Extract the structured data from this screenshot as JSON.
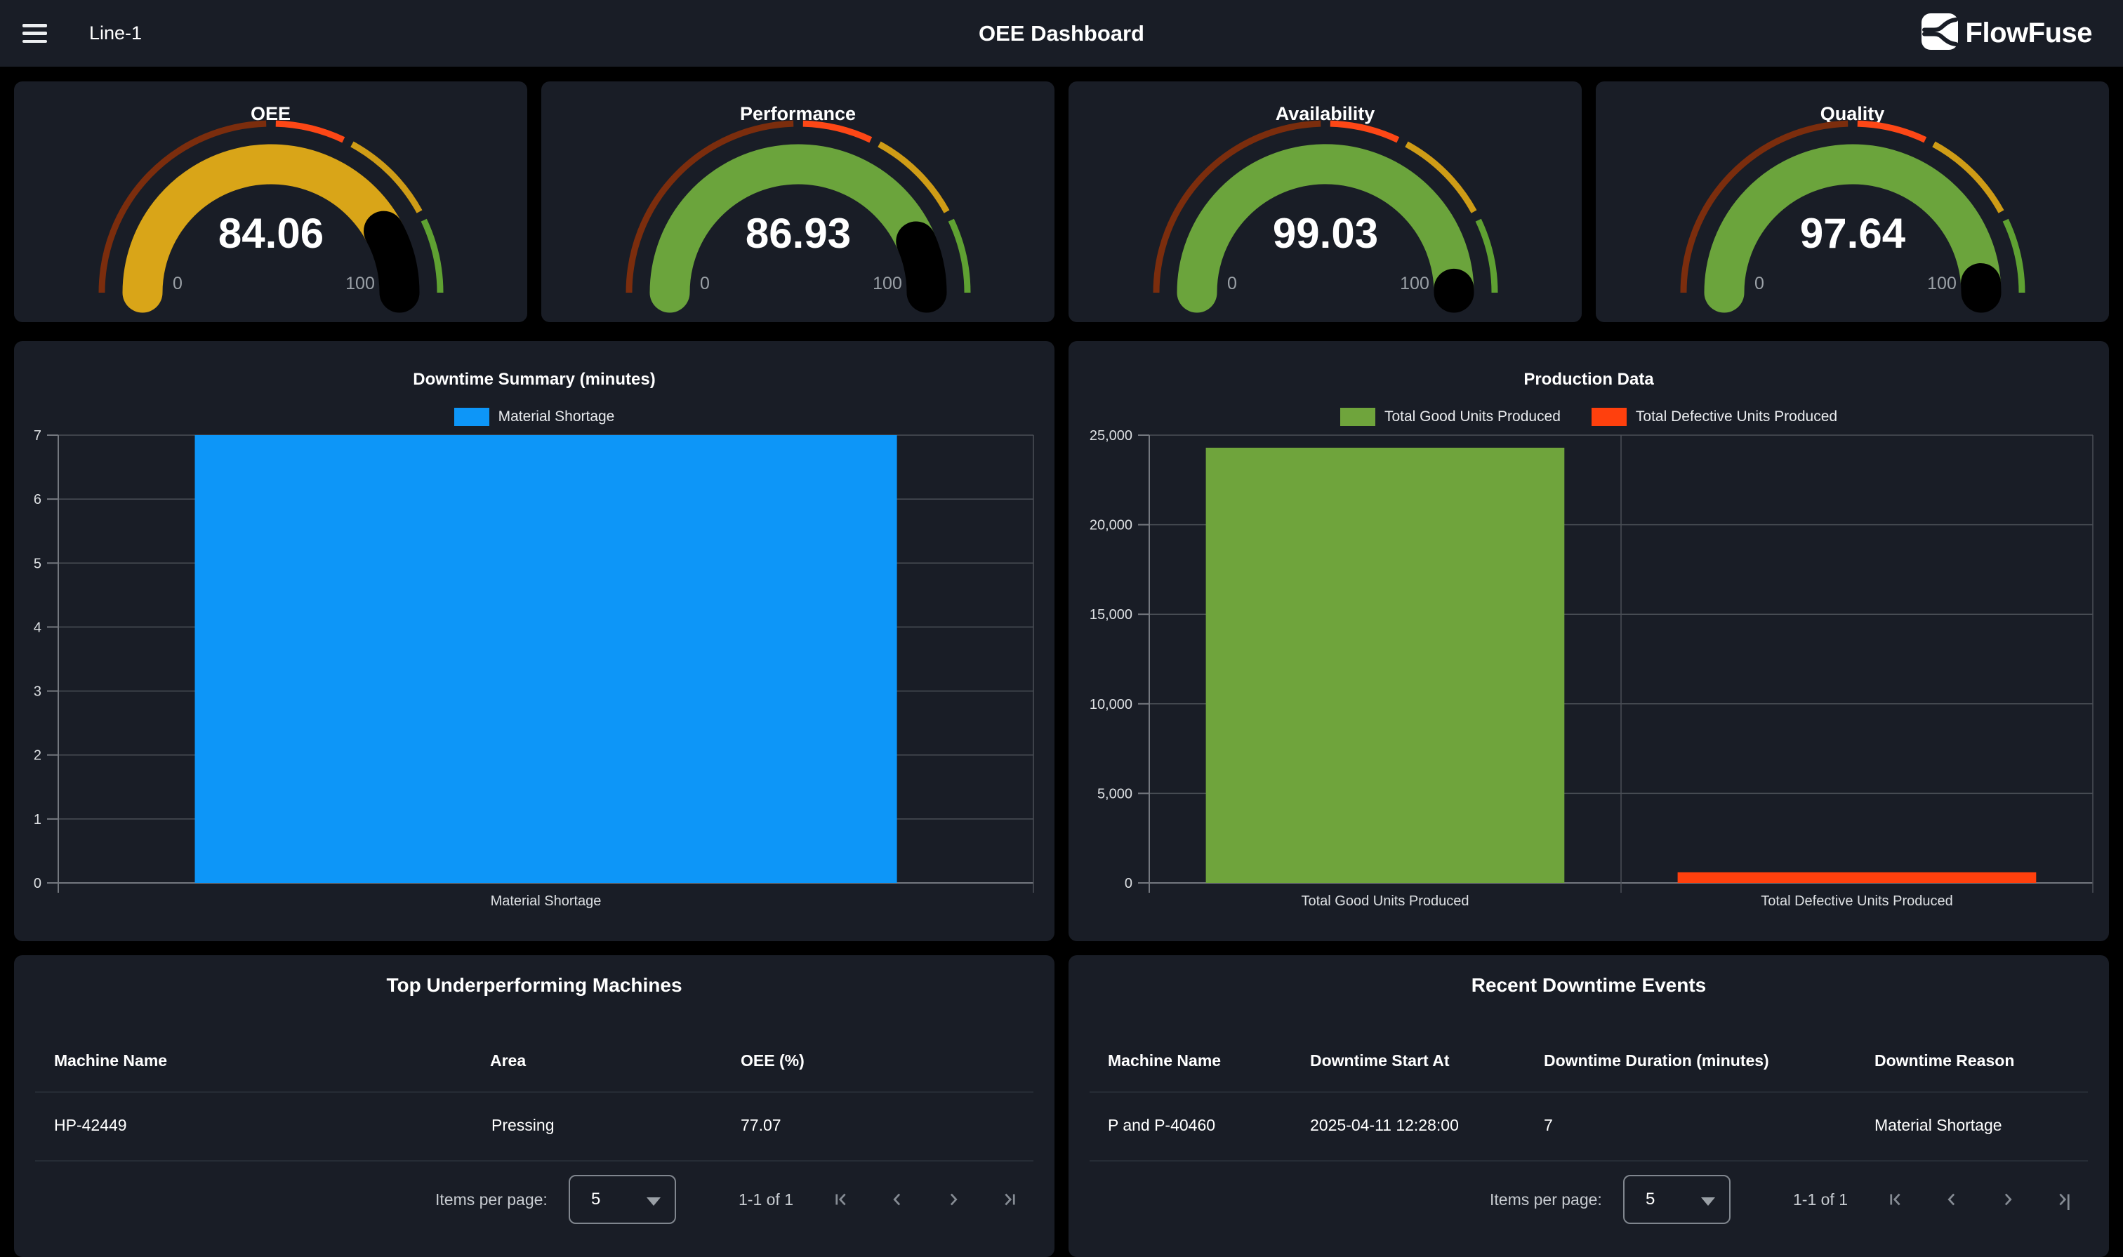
{
  "topbar": {
    "context": "Line-1",
    "title": "OEE Dashboard",
    "brand": "FlowFuse"
  },
  "gauge_zones": [
    {
      "to": 50,
      "color": "#7b2d0d",
      "value_color": "#b03a10"
    },
    {
      "to": 65,
      "color": "#fd4716",
      "value_color": "#fd4716"
    },
    {
      "to": 85,
      "color": "#cf9c16",
      "value_color": "#d9a518"
    },
    {
      "to": 100,
      "color": "#5fa132",
      "value_color": "#6ba43c"
    }
  ],
  "gauges": [
    {
      "title": "OEE",
      "value": 84.06,
      "display": "84.06",
      "min": "0",
      "max": "100"
    },
    {
      "title": "Performance",
      "value": 86.93,
      "display": "86.93",
      "min": "0",
      "max": "100"
    },
    {
      "title": "Availability",
      "value": 99.03,
      "display": "99.03",
      "min": "0",
      "max": "100"
    },
    {
      "title": "Quality",
      "value": 97.64,
      "display": "97.64",
      "min": "0",
      "max": "100"
    }
  ],
  "chart_data": [
    {
      "type": "bar",
      "title": "Downtime Summary (minutes)",
      "legend": [
        {
          "label": "Material Shortage",
          "color": "#0d96f8"
        }
      ],
      "legend_position": "top",
      "grid": true,
      "categories": [
        "Material Shortage"
      ],
      "values": [
        7
      ],
      "colors": [
        "#0d96f8"
      ],
      "xlabel": "",
      "ylabel": "",
      "ylim": [
        0,
        7
      ],
      "yticks": [
        0,
        1,
        2,
        3,
        4,
        5,
        6,
        7
      ],
      "ytick_labels": [
        "0",
        "1",
        "2",
        "3",
        "4",
        "5",
        "6",
        "7"
      ]
    },
    {
      "type": "bar",
      "title": "Production Data",
      "legend": [
        {
          "label": "Total Good Units Produced",
          "color": "#6fa43c"
        },
        {
          "label": "Total Defective Units Produced",
          "color": "#ff400d"
        }
      ],
      "legend_position": "top",
      "grid": true,
      "categories": [
        "Total Good Units Produced",
        "Total Defective Units Produced"
      ],
      "values": [
        24300,
        590
      ],
      "colors": [
        "#6fa43c",
        "#ff400d"
      ],
      "xlabel": "",
      "ylabel": "",
      "ylim": [
        0,
        25000
      ],
      "yticks": [
        0,
        5000,
        10000,
        15000,
        20000,
        25000
      ],
      "ytick_labels": [
        "0",
        "5,000",
        "10,000",
        "15,000",
        "20,000",
        "25,000"
      ]
    }
  ],
  "tables": [
    {
      "title": "Top Underperforming Machines",
      "columns": [
        "Machine Name",
        "Area",
        "OEE (%)"
      ],
      "rows": [
        [
          "HP-42449",
          "Pressing",
          "77.07"
        ]
      ],
      "pagination": {
        "items_label": "Items per page:",
        "page_size": "5",
        "range": "1-1 of 1"
      }
    },
    {
      "title": "Recent Downtime Events",
      "columns": [
        "Machine Name",
        "Downtime Start At",
        "Downtime Duration (minutes)",
        "Downtime Reason"
      ],
      "rows": [
        [
          "P and P-40460",
          "2025-04-11 12:28:00",
          "7",
          "Material Shortage"
        ]
      ],
      "pagination": {
        "items_label": "Items per page:",
        "page_size": "5",
        "range": "1-1 of 1"
      }
    }
  ],
  "theme": {
    "page_bg": "#000000",
    "card_bg": "#191d26",
    "grid_color": "#4a4f56",
    "axis_color": "#74787f",
    "text_color": "#ffffff",
    "muted_text": "#9aa0a6"
  }
}
